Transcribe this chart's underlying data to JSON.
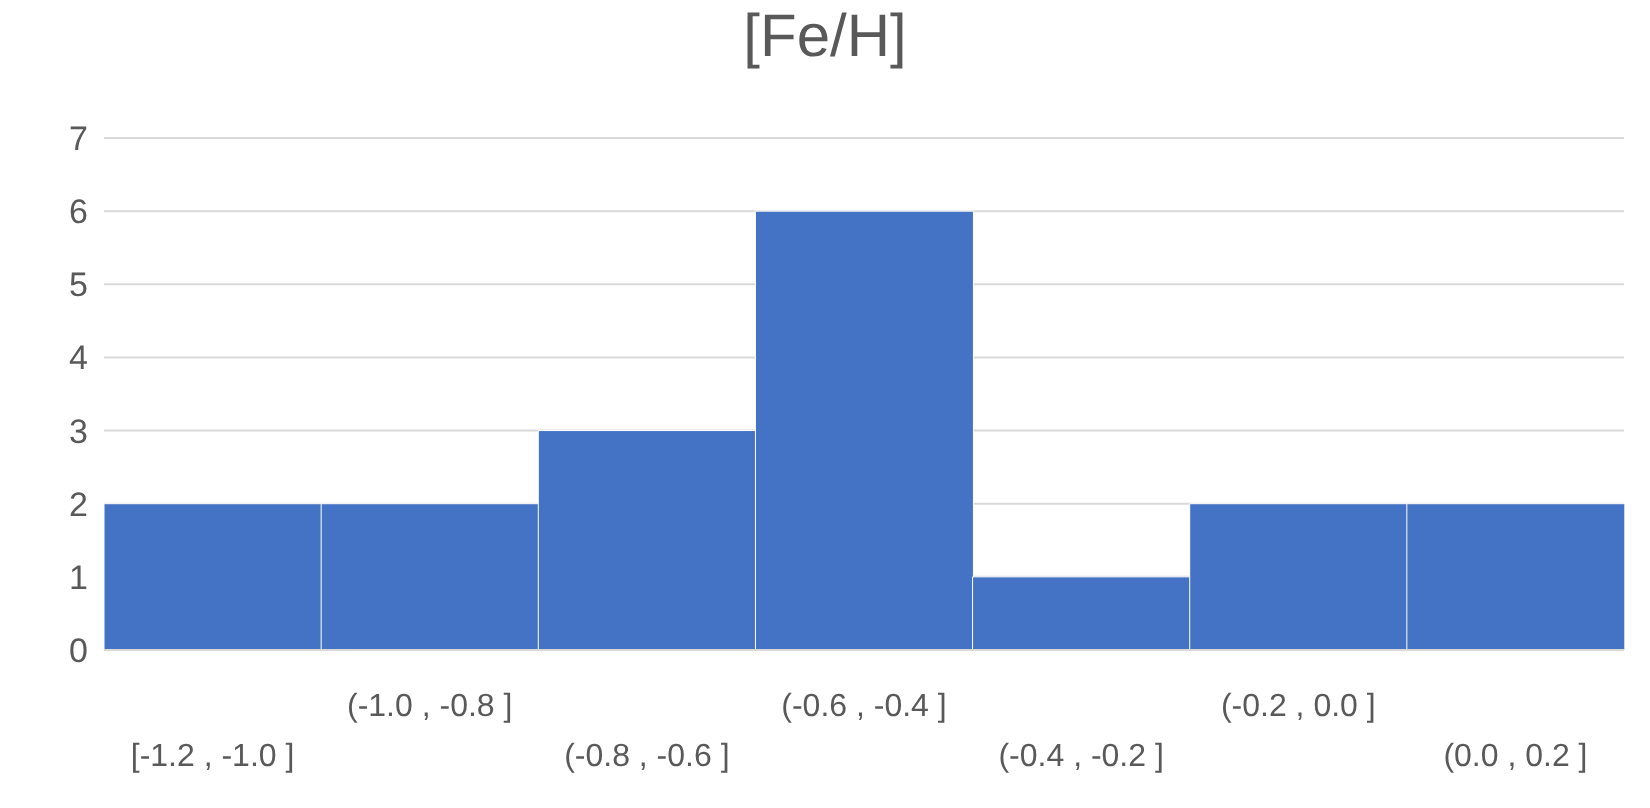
{
  "chart_data": {
    "type": "bar",
    "title": "[Fe/H]",
    "categories": [
      "[-1.2 , -1.0 ]",
      "(-1.0 , -0.8 ]",
      "(-0.8 , -0.6 ]",
      "(-0.6 , -0.4 ]",
      "(-0.4 , -0.2 ]",
      "(-0.2 , 0.0 ]",
      "(0.0 , 0.2 ]"
    ],
    "values": [
      2,
      2,
      3,
      6,
      1,
      2,
      2
    ],
    "color": "#4472c4",
    "ylim": [
      0,
      7
    ],
    "yticks": [
      0,
      1,
      2,
      3,
      4,
      5,
      6,
      7
    ],
    "grid": "y",
    "legend": false
  }
}
